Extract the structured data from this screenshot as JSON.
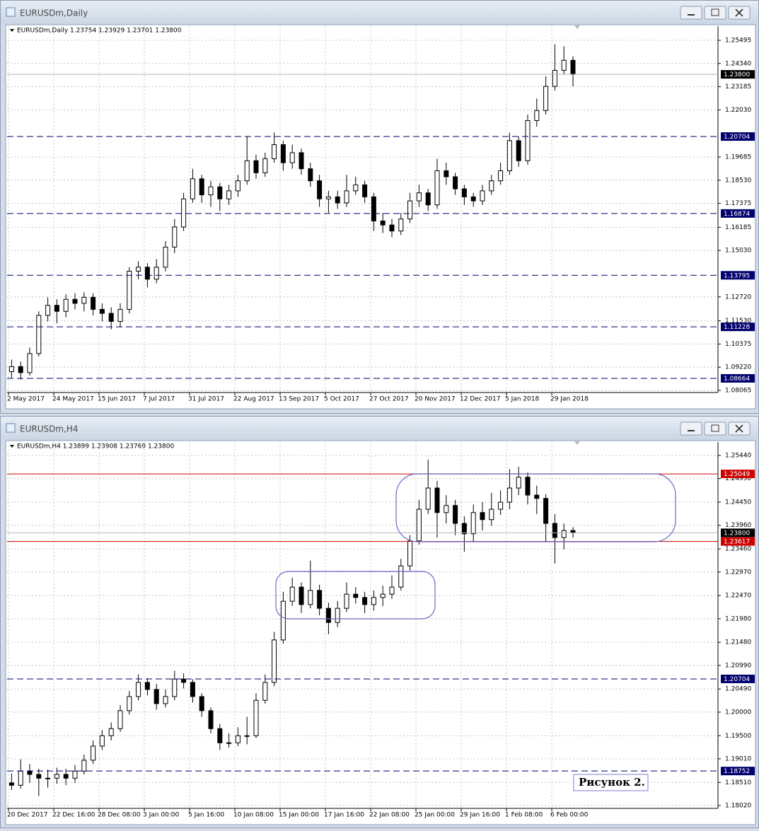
{
  "windows": [
    {
      "title": "EURUSDm,Daily",
      "chart": {
        "type": "candlestick",
        "info": "EURUSDm,Daily 1.23754 1.23929 1.23701 1.23800",
        "grid": true,
        "up_color": "#ffffff",
        "down_color": "#000000",
        "ylim": [
          1.07959,
          1.26199
        ],
        "yticks": [
          1.25495,
          {
            "value": 1.2434,
            "label": "1.24340"
          },
          1.23185,
          {
            "value": 1.2203,
            "label": "1.22030"
          },
          1.19685,
          {
            "value": 1.1853,
            "label": "1.18530"
          },
          1.17375,
          1.16185,
          {
            "value": 1.1503,
            "label": "1.15030"
          },
          {
            "value": 1.1272,
            "label": "1.12720"
          },
          {
            "value": 1.1153,
            "label": "1.11530"
          },
          1.10375,
          {
            "value": 1.0922,
            "label": "1.09220"
          },
          1.08065
        ],
        "levels": [
          {
            "value": 1.20704,
            "color": "#00006e",
            "style": "dashed"
          },
          {
            "value": 1.16874,
            "color": "#00006e",
            "style": "dashed"
          },
          {
            "value": 1.13795,
            "color": "#00006e",
            "style": "dashed"
          },
          {
            "value": 1.11228,
            "color": "#00006e",
            "style": "dashed"
          },
          {
            "value": 1.08664,
            "color": "#00006e",
            "style": "dashed"
          },
          {
            "value": 1.238,
            "label": "1.23800",
            "color": "#000000",
            "line_color": "#b4b4b4",
            "style": "solid"
          }
        ],
        "categories": [
          "2 May 2017",
          null,
          null,
          null,
          null,
          "24 May 2017",
          null,
          null,
          null,
          null,
          "15 Jun 2017",
          null,
          null,
          null,
          null,
          "7 Jul 2017",
          null,
          null,
          null,
          null,
          "31 Jul 2017",
          null,
          null,
          null,
          null,
          "22 Aug 2017",
          null,
          null,
          null,
          null,
          "13 Sep 2017",
          null,
          null,
          null,
          null,
          "5 Oct 2017",
          null,
          null,
          null,
          null,
          "27 Oct 2017",
          null,
          null,
          null,
          null,
          "20 Nov 2017",
          null,
          null,
          null,
          null,
          "12 Dec 2017",
          null,
          null,
          null,
          null,
          "5 Jan 2018",
          null,
          null,
          null,
          null,
          "29 Jan 2018",
          null,
          null
        ],
        "ohlc": [
          [
            1.09,
            1.096,
            1.087,
            1.0925
          ],
          [
            1.0925,
            1.095,
            1.086,
            1.0895
          ],
          [
            1.0895,
            1.102,
            1.088,
            1.099
          ],
          [
            1.099,
            1.12,
            1.0975,
            1.118
          ],
          [
            1.118,
            1.127,
            1.115,
            1.123
          ],
          [
            1.123,
            1.126,
            1.114,
            1.12
          ],
          [
            1.12,
            1.1285,
            1.117,
            1.126
          ],
          [
            1.126,
            1.129,
            1.121,
            1.124
          ],
          [
            1.124,
            1.1295,
            1.12,
            1.127
          ],
          [
            1.127,
            1.129,
            1.118,
            1.121
          ],
          [
            1.121,
            1.124,
            1.115,
            1.119
          ],
          [
            1.119,
            1.122,
            1.111,
            1.115
          ],
          [
            1.115,
            1.124,
            1.112,
            1.121
          ],
          [
            1.121,
            1.142,
            1.119,
            1.14
          ],
          [
            1.14,
            1.145,
            1.136,
            1.142
          ],
          [
            1.142,
            1.144,
            1.132,
            1.136
          ],
          [
            1.136,
            1.146,
            1.134,
            1.142
          ],
          [
            1.142,
            1.155,
            1.14,
            1.152
          ],
          [
            1.152,
            1.166,
            1.149,
            1.162
          ],
          [
            1.162,
            1.179,
            1.16,
            1.176
          ],
          [
            1.176,
            1.191,
            1.174,
            1.186
          ],
          [
            1.186,
            1.188,
            1.174,
            1.178
          ],
          [
            1.178,
            1.185,
            1.172,
            1.182
          ],
          [
            1.182,
            1.184,
            1.17,
            1.176
          ],
          [
            1.176,
            1.183,
            1.173,
            1.18
          ],
          [
            1.18,
            1.188,
            1.177,
            1.185
          ],
          [
            1.185,
            1.207,
            1.183,
            1.195
          ],
          [
            1.195,
            1.198,
            1.186,
            1.189
          ],
          [
            1.189,
            1.199,
            1.187,
            1.196
          ],
          [
            1.196,
            1.209,
            1.194,
            1.203
          ],
          [
            1.203,
            1.205,
            1.19,
            1.194
          ],
          [
            1.194,
            1.203,
            1.191,
            1.199
          ],
          [
            1.199,
            1.201,
            1.188,
            1.191
          ],
          [
            1.191,
            1.194,
            1.182,
            1.185
          ],
          [
            1.185,
            1.188,
            1.172,
            1.176
          ],
          [
            1.176,
            1.18,
            1.169,
            1.177
          ],
          [
            1.177,
            1.18,
            1.171,
            1.174
          ],
          [
            1.174,
            1.188,
            1.172,
            1.18
          ],
          [
            1.18,
            1.187,
            1.178,
            1.183
          ],
          [
            1.183,
            1.185,
            1.174,
            1.177
          ],
          [
            1.177,
            1.179,
            1.16,
            1.165
          ],
          [
            1.165,
            1.169,
            1.159,
            1.163
          ],
          [
            1.163,
            1.166,
            1.157,
            1.16
          ],
          [
            1.16,
            1.169,
            1.158,
            1.166
          ],
          [
            1.166,
            1.179,
            1.164,
            1.175
          ],
          [
            1.175,
            1.183,
            1.172,
            1.179
          ],
          [
            1.179,
            1.181,
            1.17,
            1.173
          ],
          [
            1.173,
            1.196,
            1.171,
            1.19
          ],
          [
            1.19,
            1.194,
            1.183,
            1.187
          ],
          [
            1.187,
            1.189,
            1.178,
            1.181
          ],
          [
            1.181,
            1.183,
            1.173,
            1.177
          ],
          [
            1.177,
            1.179,
            1.172,
            1.175
          ],
          [
            1.175,
            1.183,
            1.173,
            1.18
          ],
          [
            1.18,
            1.188,
            1.178,
            1.185
          ],
          [
            1.185,
            1.194,
            1.183,
            1.19
          ],
          [
            1.19,
            1.209,
            1.188,
            1.205
          ],
          [
            1.205,
            1.207,
            1.192,
            1.195
          ],
          [
            1.195,
            1.218,
            1.193,
            1.215
          ],
          [
            1.215,
            1.226,
            1.212,
            1.22
          ],
          [
            1.22,
            1.237,
            1.218,
            1.232
          ],
          [
            1.232,
            1.253,
            1.23,
            1.24
          ],
          [
            1.24,
            1.252,
            1.238,
            1.245
          ],
          [
            1.245,
            1.247,
            1.232,
            1.238
          ]
        ]
      }
    },
    {
      "title": "EURUSDm,H4",
      "annotation": "Рисунок 2.",
      "chart": {
        "type": "candlestick",
        "info": "EURUSDm,H4 1.23899 1.23908 1.23769 1.23800",
        "grid": true,
        "up_color": "#ffffff",
        "down_color": "#000000",
        "ylim": [
          1.1796,
          1.25725
        ],
        "yticks": [
          {
            "value": 1.2544,
            "label": "1.25440"
          },
          {
            "value": 1.2495,
            "label": "1.24950"
          },
          {
            "value": 1.2445,
            "label": "1.24450"
          },
          {
            "value": 1.2396,
            "label": "1.23960"
          },
          {
            "value": 1.2346,
            "label": "1.23460"
          },
          {
            "value": 1.2297,
            "label": "1.22970"
          },
          {
            "value": 1.2247,
            "label": "1.22470"
          },
          {
            "value": 1.2198,
            "label": "1.21980"
          },
          {
            "value": 1.2148,
            "label": "1.21480"
          },
          {
            "value": 1.2099,
            "label": "1.20990"
          },
          {
            "value": 1.2049,
            "label": "1.20490"
          },
          {
            "value": 1.2,
            "label": "1.20000"
          },
          {
            "value": 1.195,
            "label": "1.19500"
          },
          {
            "value": 1.1901,
            "label": "1.19010"
          },
          {
            "value": 1.1851,
            "label": "1.18510"
          },
          {
            "value": 1.1802,
            "label": "1.18020"
          }
        ],
        "levels": [
          {
            "value": 1.25049,
            "color": "#d00000",
            "style": "solid"
          },
          {
            "value": 1.23617,
            "color": "#d00000",
            "style": "solid"
          },
          {
            "value": 1.20704,
            "color": "#00006e",
            "style": "dashed"
          },
          {
            "value": 1.18752,
            "color": "#00006e",
            "style": "dashed"
          },
          {
            "value": 1.238,
            "label": "1.23800",
            "color": "#000000",
            "line_color": "#b4b4b4",
            "style": "solid"
          }
        ],
        "categories": [
          "20 Dec 2017",
          null,
          null,
          null,
          null,
          "22 Dec 16:00",
          null,
          null,
          null,
          null,
          "28 Dec 08:00",
          null,
          null,
          null,
          null,
          "3 Jan 00:00",
          null,
          null,
          null,
          null,
          "5 Jan 16:00",
          null,
          null,
          null,
          null,
          "10 Jan 08:00",
          null,
          null,
          null,
          null,
          "15 Jan 00:00",
          null,
          null,
          null,
          null,
          "17 Jan 16:00",
          null,
          null,
          null,
          null,
          "22 Jan 08:00",
          null,
          null,
          null,
          null,
          "25 Jan 00:00",
          null,
          null,
          null,
          null,
          "29 Jan 16:00",
          null,
          null,
          null,
          null,
          "1 Feb 08:00",
          null,
          null,
          null,
          null,
          "6 Feb 00:00",
          null,
          null
        ],
        "ohlc": [
          [
            1.185,
            1.187,
            1.1835,
            1.1845
          ],
          [
            1.1845,
            1.19,
            1.1838,
            1.1875
          ],
          [
            1.1875,
            1.189,
            1.185,
            1.1868
          ],
          [
            1.1868,
            1.188,
            1.1822,
            1.186
          ],
          [
            1.186,
            1.1878,
            1.184,
            1.186
          ],
          [
            1.186,
            1.1882,
            1.1848,
            1.1868
          ],
          [
            1.1868,
            1.188,
            1.1845,
            1.186
          ],
          [
            1.186,
            1.1888,
            1.185,
            1.1875
          ],
          [
            1.1875,
            1.191,
            1.1868,
            1.1898
          ],
          [
            1.1898,
            1.194,
            1.189,
            1.1928
          ],
          [
            1.1928,
            1.1962,
            1.192,
            1.195
          ],
          [
            1.195,
            1.1978,
            1.194,
            1.1965
          ],
          [
            1.1965,
            1.2015,
            1.1958,
            1.2003
          ],
          [
            1.2003,
            1.2045,
            1.1995,
            1.2033
          ],
          [
            1.2033,
            1.208,
            1.2025,
            1.2063
          ],
          [
            1.2063,
            1.2072,
            1.2035,
            1.2048
          ],
          [
            1.2048,
            1.206,
            1.2005,
            1.2018
          ],
          [
            1.2018,
            1.2048,
            1.201,
            1.2033
          ],
          [
            1.2033,
            1.2088,
            1.2025,
            1.207
          ],
          [
            1.207,
            1.2082,
            1.205,
            1.2063
          ],
          [
            1.2063,
            1.207,
            1.202,
            1.2033
          ],
          [
            1.2033,
            1.204,
            1.199,
            1.2003
          ],
          [
            1.2003,
            1.201,
            1.1955,
            1.1965
          ],
          [
            1.1965,
            1.1975,
            1.192,
            1.1935
          ],
          [
            1.1935,
            1.1955,
            1.1925,
            1.1935
          ],
          [
            1.1935,
            1.1968,
            1.1928,
            1.195
          ],
          [
            1.195,
            1.199,
            1.1932,
            1.195
          ],
          [
            1.195,
            1.204,
            1.1945,
            1.2025
          ],
          [
            1.2025,
            1.208,
            1.2018,
            1.2063
          ],
          [
            1.2063,
            1.217,
            1.2055,
            1.2153
          ],
          [
            1.2153,
            1.2255,
            1.2145,
            1.2235
          ],
          [
            1.2235,
            1.2285,
            1.2225,
            1.2265
          ],
          [
            1.2265,
            1.2275,
            1.221,
            1.2228
          ],
          [
            1.2228,
            1.2321,
            1.222,
            1.2258
          ],
          [
            1.2258,
            1.227,
            1.2205,
            1.222
          ],
          [
            1.222,
            1.2232,
            1.2165,
            1.219
          ],
          [
            1.219,
            1.2235,
            1.218,
            1.222
          ],
          [
            1.222,
            1.2275,
            1.2212,
            1.225
          ],
          [
            1.225,
            1.2265,
            1.223,
            1.2243
          ],
          [
            1.2243,
            1.2255,
            1.221,
            1.2228
          ],
          [
            1.2228,
            1.2258,
            1.2215,
            1.2243
          ],
          [
            1.2243,
            1.2268,
            1.2225,
            1.225
          ],
          [
            1.225,
            1.229,
            1.224,
            1.2265
          ],
          [
            1.2265,
            1.2325,
            1.2258,
            1.231
          ],
          [
            1.231,
            1.2375,
            1.23,
            1.2363
          ],
          [
            1.2363,
            1.245,
            1.2355,
            1.243
          ],
          [
            1.243,
            1.2535,
            1.242,
            1.2475
          ],
          [
            1.2475,
            1.249,
            1.237,
            1.2423
          ],
          [
            1.2423,
            1.246,
            1.24,
            1.2438
          ],
          [
            1.2438,
            1.245,
            1.2375,
            1.24
          ],
          [
            1.24,
            1.2415,
            1.234,
            1.2378
          ],
          [
            1.2378,
            1.244,
            1.236,
            1.2423
          ],
          [
            1.2423,
            1.2445,
            1.2385,
            1.2408
          ],
          [
            1.2408,
            1.2465,
            1.2395,
            1.243
          ],
          [
            1.243,
            1.247,
            1.2418,
            1.2445
          ],
          [
            1.2445,
            1.2515,
            1.243,
            1.2475
          ],
          [
            1.2475,
            1.252,
            1.246,
            1.2498
          ],
          [
            1.2498,
            1.2508,
            1.244,
            1.246
          ],
          [
            1.246,
            1.248,
            1.242,
            1.2453
          ],
          [
            1.2453,
            1.2462,
            1.236,
            1.24
          ],
          [
            1.24,
            1.242,
            1.2315,
            1.237
          ],
          [
            1.237,
            1.24,
            1.2345,
            1.2385
          ],
          [
            1.2385,
            1.2392,
            1.237,
            1.238
          ]
        ]
      }
    }
  ]
}
